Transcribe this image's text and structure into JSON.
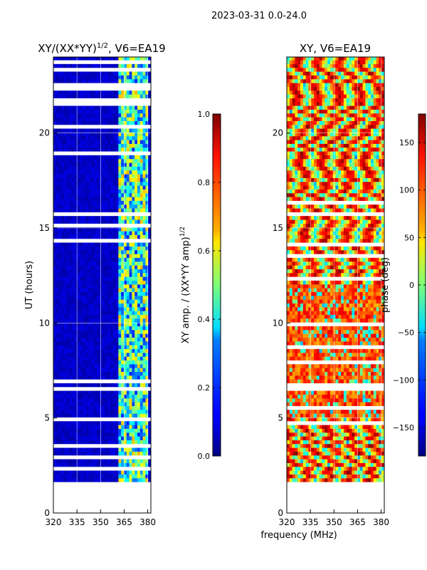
{
  "suptitle": "2023-03-31 0.0-24.0",
  "chart_data": [
    {
      "type": "heatmap",
      "title": "XY/(XX*YY)",
      "title_exponent": "1/2",
      "title_suffix": ", V6=EA19",
      "xlabel": "",
      "ylabel": "UT (hours)",
      "xlim": [
        320,
        382
      ],
      "ylim": [
        0,
        24
      ],
      "xticks": [
        320,
        335,
        350,
        365,
        380
      ],
      "yticks": [
        0,
        5,
        10,
        15,
        20
      ],
      "data_range_hours": [
        1.65,
        24
      ],
      "colormap": "jet",
      "colorbar": {
        "label": "XY amp. / (XX*YY amp)",
        "label_exponent": "1/2",
        "range": [
          0.0,
          1.0
        ],
        "ticks": [
          "0.0",
          "0.2",
          "0.4",
          "0.6",
          "0.8",
          "1.0"
        ]
      },
      "description_values": {
        "low_freq_band_amplitude": 0.05,
        "high_freq_band_amplitude_range": [
          0.3,
          0.7
        ],
        "high_freq_band_MHz": [
          360,
          380
        ]
      }
    },
    {
      "type": "heatmap",
      "title": "XY, V6=EA19",
      "xlabel": "frequency (MHz)",
      "ylabel": "",
      "xlim": [
        320,
        382
      ],
      "ylim": [
        0,
        24
      ],
      "xticks": [
        320,
        335,
        350,
        365,
        380
      ],
      "yticks": [
        0,
        5,
        10,
        15,
        20
      ],
      "data_range_hours": [
        1.65,
        24
      ],
      "colormap": "jet",
      "colorbar": {
        "label": "phase (deg)",
        "range": [
          -180,
          180
        ],
        "ticks": [
          "−150",
          "−100",
          "−50",
          "0",
          "50",
          "100",
          "150"
        ]
      }
    }
  ],
  "colors": {
    "axis": "#000000",
    "grid": "#ffffff",
    "gap": "#ffffff"
  }
}
